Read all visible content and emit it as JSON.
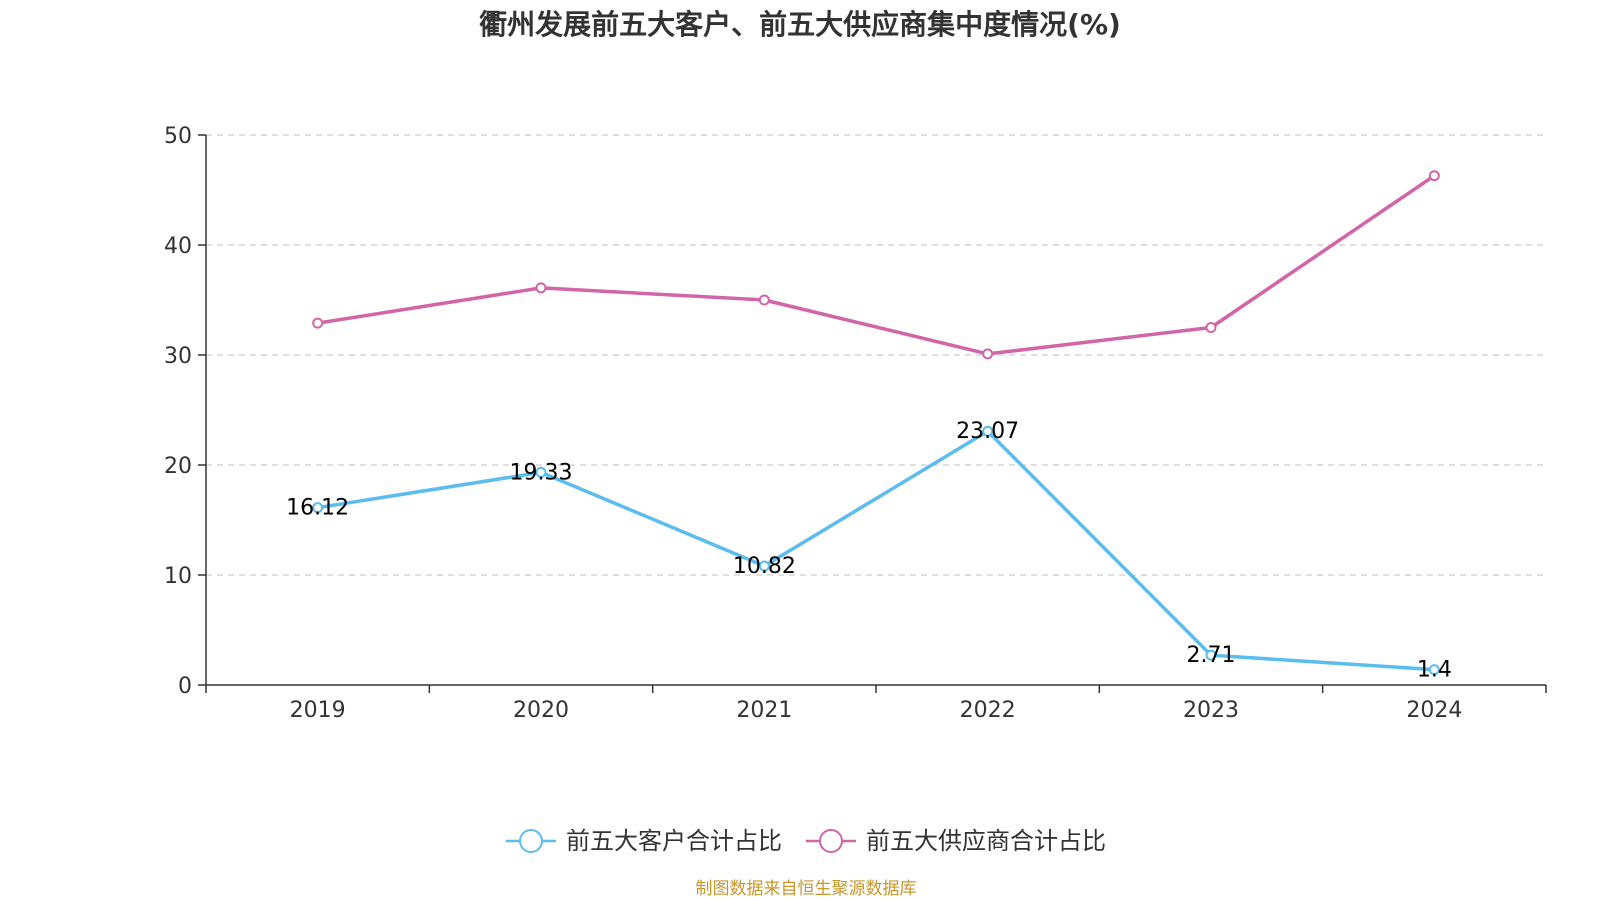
{
  "chart_data": {
    "type": "line",
    "title": "衢州发展前五大客户、前五大供应商集中度情况(%)",
    "xlabel": "",
    "ylabel": "",
    "categories": [
      "2019",
      "2020",
      "2021",
      "2022",
      "2023",
      "2024"
    ],
    "ylim": [
      0,
      50
    ],
    "yticks": [
      0,
      10,
      20,
      30,
      40,
      50
    ],
    "grid": true,
    "legend_position": "bottom",
    "series": [
      {
        "name": "前五大客户合计占比",
        "color": "#5bbcee",
        "values": [
          16.12,
          19.33,
          10.82,
          23.07,
          2.71,
          1.4
        ],
        "labels": [
          "16.12",
          "19.33",
          "10.82",
          "23.07",
          "2.71",
          "1.4"
        ],
        "show_labels": true
      },
      {
        "name": "前五大供应商合计占比",
        "color": "#d264a8",
        "values": [
          32.9,
          36.1,
          35.0,
          30.1,
          32.5,
          46.3
        ],
        "show_labels": false
      }
    ],
    "source": "制图数据来自恒生聚源数据库",
    "source_color": "#c8962a"
  }
}
